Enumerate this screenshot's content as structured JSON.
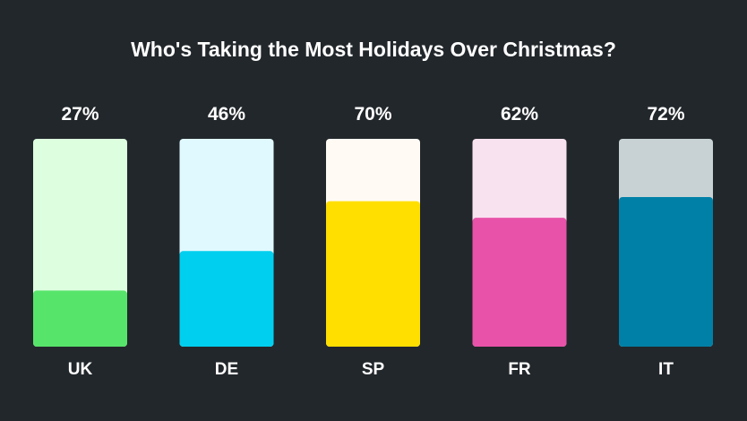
{
  "chart_data": {
    "type": "bar",
    "title": "Who's Taking the Most Holidays Over Christmas?",
    "categories": [
      "UK",
      "DE",
      "SP",
      "FR",
      "IT"
    ],
    "values": [
      27,
      46,
      70,
      62,
      72
    ],
    "value_labels": [
      "27%",
      "46%",
      "70%",
      "62%",
      "72%"
    ],
    "ylim": [
      0,
      100
    ],
    "xlabel": "",
    "ylabel": "",
    "grid": false,
    "fill_colors": [
      "#57e46a",
      "#00cfef",
      "#ffdf00",
      "#e852a8",
      "#0080a6"
    ],
    "track_colors": [
      "#ddffdf",
      "#e0f9ff",
      "#fffbf4",
      "#f8e2f0",
      "#c8d2d4"
    ]
  }
}
